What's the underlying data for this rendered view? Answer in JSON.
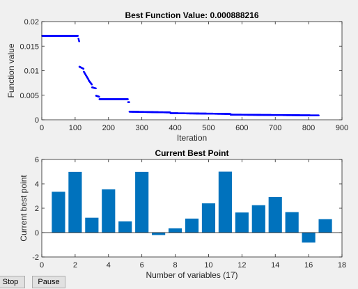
{
  "buttons": {
    "stop_label": "Stop",
    "pause_label": "Pause"
  },
  "colors": {
    "plot_blue": "#0000ff",
    "bar_blue": "#0072bd",
    "axes_bg": "#ffffff",
    "figure_bg": "#f0f0f0",
    "axis_color": "#262626"
  },
  "chart_data": [
    {
      "type": "scatter",
      "title": "Best Function Value: 0.000888216",
      "xlabel": "Iteration",
      "ylabel": "Function value",
      "xlim": [
        0,
        900
      ],
      "ylim": [
        0,
        0.02
      ],
      "xticks": [
        0,
        100,
        200,
        300,
        400,
        500,
        600,
        700,
        800,
        900
      ],
      "yticks": [
        0,
        0.005,
        0.01,
        0.015,
        0.02
      ],
      "xtick_labels": [
        "0",
        "100",
        "200",
        "300",
        "400",
        "500",
        "600",
        "700",
        "800",
        "900"
      ],
      "ytick_labels": [
        "0",
        "0.005",
        "0.01",
        "0.015",
        "0.02"
      ],
      "grid": false,
      "marker_color": "#0000ff",
      "segments": [
        {
          "x_start": 1,
          "x_end": 108,
          "y_start": 0.0171,
          "y_end": 0.0171
        },
        {
          "x_start": 110,
          "x_end": 112,
          "y_start": 0.0165,
          "y_end": 0.016
        },
        {
          "x_start": 113,
          "x_end": 125,
          "y_start": 0.0108,
          "y_end": 0.0104
        },
        {
          "x_start": 126,
          "x_end": 140,
          "y_start": 0.0098,
          "y_end": 0.0082
        },
        {
          "x_start": 141,
          "x_end": 150,
          "y_start": 0.008,
          "y_end": 0.0072
        },
        {
          "x_start": 151,
          "x_end": 162,
          "y_start": 0.0066,
          "y_end": 0.0064
        },
        {
          "x_start": 163,
          "x_end": 172,
          "y_start": 0.0049,
          "y_end": 0.0047
        },
        {
          "x_start": 173,
          "x_end": 258,
          "y_start": 0.0042,
          "y_end": 0.0042
        },
        {
          "x_start": 259,
          "x_end": 262,
          "y_start": 0.0036,
          "y_end": 0.0036
        },
        {
          "x_start": 263,
          "x_end": 385,
          "y_start": 0.00165,
          "y_end": 0.0015
        },
        {
          "x_start": 386,
          "x_end": 565,
          "y_start": 0.00135,
          "y_end": 0.0012
        },
        {
          "x_start": 566,
          "x_end": 830,
          "y_start": 0.00105,
          "y_end": 0.00089
        }
      ]
    },
    {
      "type": "bar",
      "title": "Current Best Point",
      "xlabel": "Number of variables (17)",
      "ylabel": "Current best point",
      "xlim": [
        0,
        18
      ],
      "ylim": [
        -2,
        6
      ],
      "xticks": [
        0,
        2,
        4,
        6,
        8,
        10,
        12,
        14,
        16,
        18
      ],
      "yticks": [
        -2,
        0,
        2,
        4,
        6
      ],
      "xtick_labels": [
        "0",
        "2",
        "4",
        "6",
        "8",
        "10",
        "12",
        "14",
        "16",
        "18"
      ],
      "ytick_labels": [
        "-2",
        "0",
        "2",
        "4",
        "6"
      ],
      "grid": false,
      "bar_color": "#0072bd",
      "categories": [
        1,
        2,
        3,
        4,
        5,
        6,
        7,
        8,
        9,
        10,
        11,
        12,
        13,
        14,
        15,
        16,
        17
      ],
      "values": [
        3.35,
        4.98,
        1.22,
        3.55,
        0.92,
        4.98,
        -0.2,
        0.35,
        1.15,
        2.4,
        5.0,
        1.65,
        2.25,
        2.92,
        1.68,
        -0.82,
        1.1
      ]
    }
  ]
}
